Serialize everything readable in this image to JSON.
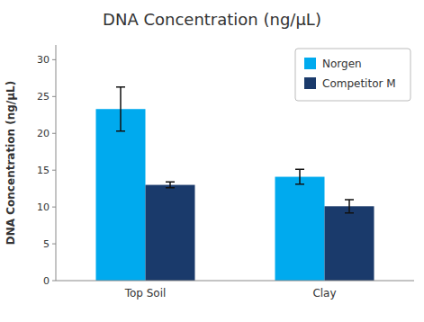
{
  "chart_data": {
    "type": "bar",
    "title": "DNA Concentration (ng/μL)",
    "ylabel": "DNA Concentration (ng/μL)",
    "categories": [
      "Top Soil",
      "Clay"
    ],
    "series": [
      {
        "name": "Norgen",
        "color": "#00AAEE",
        "values": [
          23.3,
          14.1
        ],
        "errors": [
          3.0,
          1.0
        ]
      },
      {
        "name": "Competitor M",
        "color": "#1A3A6B",
        "values": [
          13.0,
          10.1
        ],
        "errors": [
          0.4,
          0.9
        ]
      }
    ],
    "ylim": [
      0,
      32
    ],
    "yticks": [
      0,
      5,
      10,
      15,
      20,
      25,
      30
    ],
    "grid": false,
    "legend": "upper right"
  }
}
